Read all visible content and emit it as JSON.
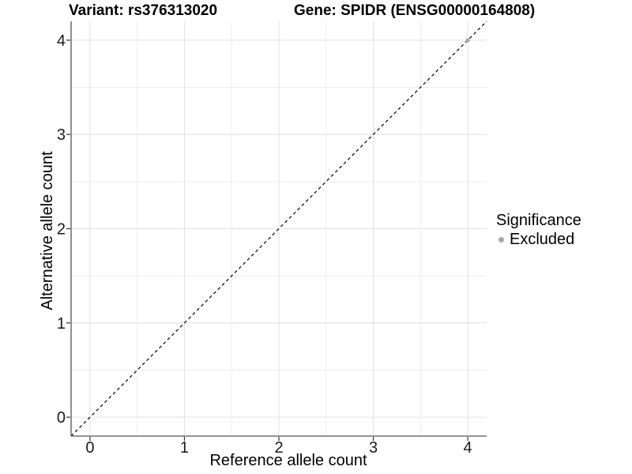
{
  "figure": {
    "titles": {
      "variant": "Variant: rs376313020",
      "gene": "Gene: SPIDR (ENSG00000164808)"
    }
  },
  "legend": {
    "title": "Significance",
    "items": [
      {
        "label": "Excluded",
        "color": "#a8a8a8"
      }
    ]
  },
  "colors": {
    "background": "#ffffff",
    "grid_major": "#e2e2e2",
    "grid_minor": "#ededed",
    "axis_line": "#555555",
    "tick_mark": "#333333",
    "tick_text": "#1a1a1a",
    "reference_line": "#000000"
  },
  "chart_data": {
    "type": "scatter",
    "title_left": "Variant: rs376313020",
    "title_right": "Gene: SPIDR (ENSG00000164808)",
    "xlabel": "Reference allele count",
    "ylabel": "Alternative allele count",
    "xlim": [
      -0.2,
      4.2
    ],
    "ylim": [
      -0.2,
      4.2
    ],
    "x_ticks": [
      0,
      1,
      2,
      3,
      4
    ],
    "y_ticks": [
      0,
      1,
      2,
      3,
      4
    ],
    "minor_ticks_x": [
      0.5,
      1.5,
      2.5,
      3.5
    ],
    "minor_ticks_y": [
      0.5,
      1.5,
      2.5,
      3.5
    ],
    "grid": true,
    "legend_title": "Significance",
    "legend_position": "right",
    "series": [
      {
        "name": "Excluded",
        "color": "#a8a8a8",
        "marker": "circle",
        "points": [
          {
            "x": 4,
            "y": 4
          }
        ]
      }
    ],
    "reference_line": {
      "style": "dashed",
      "color": "#000000",
      "from": [
        -0.2,
        -0.2
      ],
      "to": [
        4.2,
        4.2
      ]
    }
  }
}
